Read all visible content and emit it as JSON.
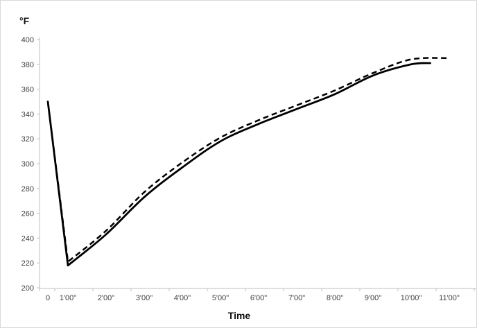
{
  "chart_data": {
    "type": "line",
    "title": "",
    "ylabel": "°F",
    "xlabel": "Time",
    "ylim": [
      200,
      400
    ],
    "ytick_step": 20,
    "yticks": [
      200,
      220,
      240,
      260,
      280,
      300,
      320,
      340,
      360,
      380,
      400
    ],
    "categories": [
      "0",
      "1'00\"",
      "2'00\"",
      "3'00\"",
      "4'00\"",
      "5'00\"",
      "6'00\"",
      "7'00\"",
      "8'00\"",
      "9'00\"",
      "10'00\"",
      "11'00\""
    ],
    "grid": false,
    "legend": false,
    "axis_color": "#bfbfbf",
    "tick_label_color": "#404040",
    "line_color": "#000000",
    "series": [
      {
        "name": "dashed",
        "style": "dashed",
        "points": [
          {
            "t": 0,
            "f": 350
          },
          {
            "t": 1,
            "f": 221
          },
          {
            "t": 2,
            "f": 246
          },
          {
            "t": 3,
            "f": 277
          },
          {
            "t": 4,
            "f": 301
          },
          {
            "t": 5,
            "f": 321
          },
          {
            "t": 6,
            "f": 335
          },
          {
            "t": 7,
            "f": 347
          },
          {
            "t": 8,
            "f": 359
          },
          {
            "t": 9,
            "f": 373
          },
          {
            "t": 10,
            "f": 384
          },
          {
            "t": 11,
            "f": 385
          }
        ]
      },
      {
        "name": "solid",
        "style": "solid",
        "points": [
          {
            "t": 0,
            "f": 350
          },
          {
            "t": 1,
            "f": 218
          },
          {
            "t": 2,
            "f": 243
          },
          {
            "t": 3,
            "f": 273
          },
          {
            "t": 4,
            "f": 297
          },
          {
            "t": 5,
            "f": 318
          },
          {
            "t": 6,
            "f": 332
          },
          {
            "t": 7,
            "f": 344
          },
          {
            "t": 8,
            "f": 356
          },
          {
            "t": 9,
            "f": 371
          },
          {
            "t": 10,
            "f": 380
          },
          {
            "t": 10.5,
            "f": 381
          }
        ]
      }
    ]
  }
}
